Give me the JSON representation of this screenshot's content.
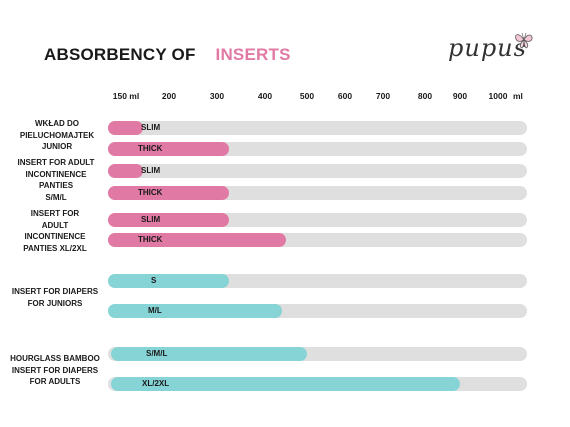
{
  "title": {
    "part1": "ABSORBENCY OF",
    "part2": "INSERTS",
    "accent_color": "#e07aa5"
  },
  "logo": {
    "text": "pupus",
    "icon": "butterfly-icon"
  },
  "colors": {
    "pink": "#e07aa5",
    "teal": "#87d4d6",
    "track": "#dfdfdf"
  },
  "chart_data": {
    "type": "bar",
    "orientation": "horizontal",
    "title": "ABSORBENCY OF INSERTS",
    "unit": "ml",
    "xlim": [
      150,
      1000
    ],
    "xticks": [
      "150 ml",
      "200",
      "300",
      "400",
      "500",
      "600",
      "700",
      "800",
      "900",
      "1000"
    ],
    "groups": [
      {
        "label": "WKŁAD DO\nPIELUCHOMAJTEK\nJUNIOR",
        "bars": [
          {
            "label": "SLIM",
            "value": 170,
            "color": "pink"
          },
          {
            "label": "THICK",
            "value": 325,
            "color": "pink"
          }
        ]
      },
      {
        "label": "INSERT FOR ADULT\nINCONTINENCE\nPANTIES\nS/M/L",
        "bars": [
          {
            "label": "SLIM",
            "value": 170,
            "color": "pink"
          },
          {
            "label": "THICK",
            "value": 325,
            "color": "pink"
          }
        ]
      },
      {
        "label": "INSERT FOR\nADULT\nINCONTINENCE\nPANTIES XL/2XL",
        "bars": [
          {
            "label": "SLIM",
            "value": 325,
            "color": "pink"
          },
          {
            "label": "THICK",
            "value": 450,
            "color": "pink"
          }
        ]
      },
      {
        "label": "INSERT FOR DIAPERS\nFOR JUNIORS",
        "bars": [
          {
            "label": "S",
            "value": 325,
            "color": "teal"
          },
          {
            "label": "M/L",
            "value": 440,
            "color": "teal"
          }
        ]
      },
      {
        "label": "HOURGLASS BAMBOO\nINSERT FOR DIAPERS\nFOR ADULTS",
        "bars": [
          {
            "label": "S/M/L",
            "value": 500,
            "color": "teal"
          },
          {
            "label": "XL/2XL",
            "value": 900,
            "color": "teal"
          }
        ]
      }
    ]
  }
}
